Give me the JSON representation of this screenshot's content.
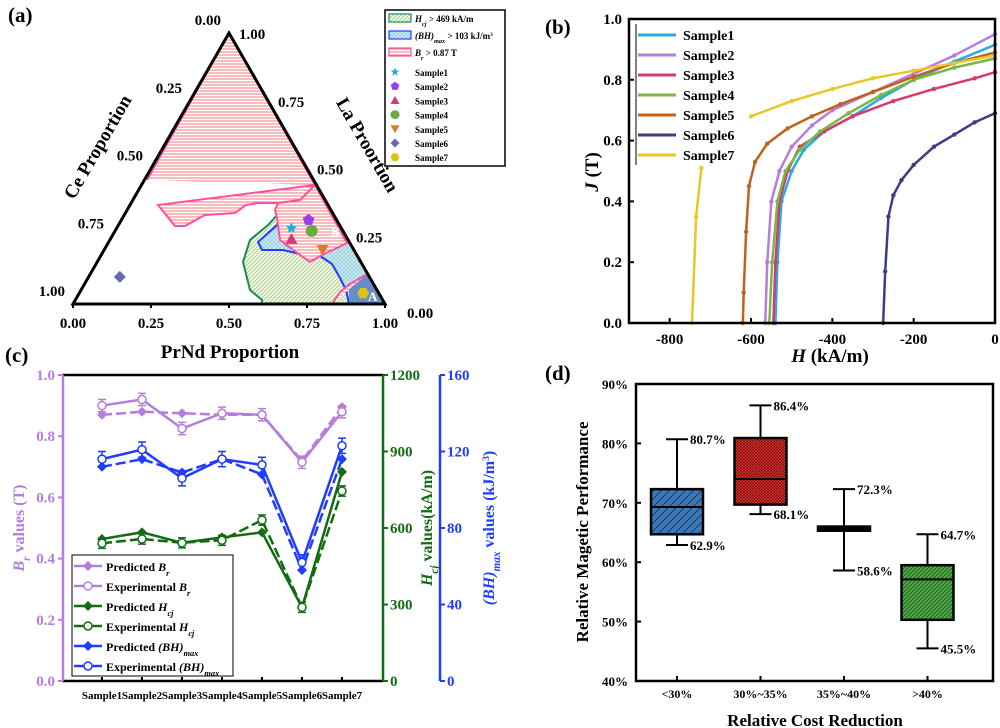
{
  "panel_labels": [
    "(a)",
    "(b)",
    "(c)",
    "(d)"
  ],
  "chart_data": [
    {
      "type": "scatter",
      "subtype": "ternary",
      "axes": {
        "bottom": {
          "title": "PrNd Proportion",
          "ticks": [
            "0.00",
            "0.25",
            "0.50",
            "0.75",
            "1.00"
          ]
        },
        "left": {
          "title": "Ce Proportion",
          "ticks": [
            "0.00",
            "0.25",
            "0.50",
            "0.75",
            "1.00"
          ]
        },
        "right": {
          "title": "La Proortion",
          "ticks": [
            "0.00",
            "0.25",
            "0.50",
            "0.75",
            "1.00"
          ]
        }
      },
      "regions": [
        {
          "symbol": "H",
          "subscript": "cj",
          "text": " > 469 kA/m",
          "color": "#1a8a5a"
        },
        {
          "symbol": "(BH)",
          "subscript": "max",
          "text": " > 103 kJ/m",
          "superscript": "3",
          "color": "#1f3cff"
        },
        {
          "symbol": "B",
          "subscript": "r",
          "text": " > 0.87 T",
          "color": "#ff4fa0"
        }
      ],
      "annotations": [
        "A",
        "B"
      ],
      "series": [
        {
          "name": "Sample1",
          "marker": "star",
          "color": "#29abe2",
          "PrNd": 0.56,
          "La": 0.28
        },
        {
          "name": "Sample2",
          "marker": "pentagon",
          "color": "#9b3df2",
          "PrNd": 0.6,
          "La": 0.31
        },
        {
          "name": "Sample3",
          "marker": "triangle-up",
          "color": "#d63a7a",
          "PrNd": 0.58,
          "La": 0.24
        },
        {
          "name": "Sample4",
          "marker": "circle",
          "color": "#6aab46",
          "PrNd": 0.63,
          "La": 0.27
        },
        {
          "name": "Sample5",
          "marker": "triangle-down",
          "color": "#e07a2a",
          "PrNd": 0.7,
          "La": 0.2
        },
        {
          "name": "Sample6",
          "marker": "diamond",
          "color": "#6a68b0",
          "PrNd": 0.1,
          "La": 0.1
        },
        {
          "name": "Sample7",
          "marker": "hexagon",
          "color": "#dcc213",
          "PrNd": 0.91,
          "La": 0.04
        }
      ],
      "legend": "top-right"
    },
    {
      "type": "line",
      "xlabel": {
        "symbol": "H",
        "text": " (kA/m)"
      },
      "ylabel": {
        "symbol": "J",
        "text": " (T)"
      },
      "xlim": [
        -900,
        0
      ],
      "ylim": [
        0,
        1.0
      ],
      "xticks": [
        "-800",
        "-600",
        "-400",
        "-200",
        "0"
      ],
      "xtick_values": [
        -800,
        -600,
        -400,
        -200,
        0
      ],
      "yticks": [
        "0.0",
        "0.2",
        "0.4",
        "0.6",
        "0.8",
        "1.0"
      ],
      "legend": "top-left",
      "series": [
        {
          "name": "Sample1",
          "color": "#29abe2",
          "x": [
            -540,
            -535,
            -525,
            -500,
            -470,
            -420,
            -350,
            -280,
            -200,
            -100,
            0
          ],
          "y": [
            0,
            0.2,
            0.4,
            0.5,
            0.57,
            0.63,
            0.68,
            0.74,
            0.8,
            0.86,
            0.915
          ]
        },
        {
          "name": "Sample2",
          "color": "#b57edc",
          "x": [
            -565,
            -560,
            -550,
            -530,
            -500,
            -450,
            -400,
            -300,
            -200,
            -100,
            0
          ],
          "y": [
            0,
            0.2,
            0.4,
            0.5,
            0.58,
            0.65,
            0.7,
            0.76,
            0.82,
            0.88,
            0.95
          ]
        },
        {
          "name": "Sample3",
          "color": "#d63a6e",
          "x": [
            -545,
            -540,
            -530,
            -510,
            -480,
            -420,
            -350,
            -250,
            -150,
            -50,
            0
          ],
          "y": [
            0,
            0.2,
            0.4,
            0.5,
            0.58,
            0.63,
            0.68,
            0.73,
            0.77,
            0.805,
            0.825
          ]
        },
        {
          "name": "Sample4",
          "color": "#7ab648",
          "x": [
            -555,
            -548,
            -535,
            -515,
            -480,
            -430,
            -360,
            -280,
            -200,
            -100,
            0
          ],
          "y": [
            0,
            0.2,
            0.4,
            0.5,
            0.57,
            0.63,
            0.69,
            0.75,
            0.8,
            0.84,
            0.87
          ]
        },
        {
          "name": "Sample5",
          "color": "#c2611a",
          "x": [
            -620,
            -618,
            -612,
            -605,
            -590,
            -560,
            -510,
            -450,
            -380,
            -300,
            -200,
            -100,
            0
          ],
          "y": [
            0,
            0.1,
            0.3,
            0.45,
            0.53,
            0.59,
            0.64,
            0.68,
            0.72,
            0.76,
            0.81,
            0.855,
            0.89
          ]
        },
        {
          "name": "Sample6",
          "color": "#3d3f86",
          "x": [
            -275,
            -270,
            -262,
            -250,
            -230,
            -200,
            -150,
            -100,
            -50,
            0
          ],
          "y": [
            0,
            0.17,
            0.35,
            0.42,
            0.47,
            0.52,
            0.58,
            0.62,
            0.66,
            0.69
          ]
        },
        {
          "name": "Sample7",
          "color": "#e6c829",
          "x": [
            -745,
            -735,
            -722,
            null,
            -600,
            -500,
            -400,
            -300,
            -200,
            -100,
            0
          ],
          "y": [
            0,
            0.35,
            0.51,
            null,
            0.68,
            0.73,
            0.77,
            0.805,
            0.83,
            0.855,
            0.88
          ]
        }
      ]
    },
    {
      "type": "line",
      "categories": [
        "Sample1",
        "Sample2",
        "Sample3",
        "Sample4",
        "Sample5",
        "Sample6",
        "Sample7"
      ],
      "axes": [
        {
          "id": "br",
          "color": "#b57edc",
          "lim": [
            0,
            1.0
          ],
          "ticks": [
            "0.0",
            "0.2",
            "0.4",
            "0.6",
            "0.8",
            "1.0"
          ],
          "label": {
            "symbol": "B",
            "subscript": "r",
            "text": " values (T)"
          }
        },
        {
          "id": "hcj",
          "color": "#136b13",
          "lim": [
            0,
            1200
          ],
          "ticks": [
            "0",
            "300",
            "600",
            "900",
            "1200"
          ],
          "label": {
            "symbol": "H",
            "subscript": "cj",
            "text": " values(kA/m)"
          }
        },
        {
          "id": "bh",
          "color": "#1f3cff",
          "lim": [
            0,
            160
          ],
          "ticks": [
            "0",
            "40",
            "80",
            "120",
            "160"
          ],
          "label": {
            "symbol": "(BH)",
            "subscript": "max",
            "text": " values (kJ/m",
            "superscript": "3",
            "tail": ")"
          }
        }
      ],
      "legend": "bottom-left",
      "series": [
        {
          "prefix": "Predicted ",
          "symbol": "B",
          "subscript": "r",
          "axis": 0,
          "marker": "diamond",
          "dashed": true,
          "values": [
            0.87,
            0.88,
            0.875,
            0.87,
            0.87,
            0.72,
            0.895
          ]
        },
        {
          "prefix": "Experimental ",
          "symbol": "B",
          "subscript": "r",
          "axis": 0,
          "marker": "open-circle",
          "dashed": false,
          "values": [
            0.9,
            0.92,
            0.825,
            0.875,
            0.87,
            0.715,
            0.88
          ],
          "error": 0.02
        },
        {
          "prefix": "Predicted ",
          "symbol": "H",
          "subscript": "cj",
          "axis": 1,
          "marker": "diamond",
          "dashed": false,
          "values": [
            557,
            583,
            542,
            563,
            583,
            289,
            820
          ]
        },
        {
          "prefix": "Experimental ",
          "symbol": "H",
          "subscript": "cj",
          "axis": 1,
          "marker": "open-circle",
          "dashed": true,
          "values": [
            540,
            557,
            542,
            552,
            631,
            289,
            745
          ],
          "error": 20
        },
        {
          "prefix": "Predicted ",
          "symbol": "(BH)",
          "subscript": "max",
          "axis": 2,
          "marker": "diamond",
          "dashed": true,
          "values": [
            112,
            116,
            109,
            116,
            108,
            58,
            116
          ]
        },
        {
          "prefix": "Experimental ",
          "symbol": "(BH)",
          "subscript": "max",
          "axis": 2,
          "marker": "open-circle",
          "dashed": false,
          "values": [
            116,
            121,
            106,
            116,
            113,
            62,
            123
          ],
          "error": 4
        }
      ]
    },
    {
      "type": "box",
      "xlabel": "Relative Cost Reduction",
      "ylabel": "Relative Magetic Performance",
      "ylim": [
        40,
        90
      ],
      "yticks": [
        "40%",
        "50%",
        "60%",
        "70%",
        "80%",
        "90%"
      ],
      "categories": [
        "<30%",
        "30%~35%",
        "35%~40%",
        ">40%"
      ],
      "boxes": [
        {
          "min": 62.9,
          "q1": 64.7,
          "median": 69.3,
          "q3": 72.3,
          "max": 80.7,
          "color": "#3a78b8",
          "max_label": "80.7%",
          "min_label": "62.9%"
        },
        {
          "min": 68.1,
          "q1": 69.7,
          "median": 74.0,
          "q3": 80.9,
          "max": 86.4,
          "color": "#d42a2a",
          "max_label": "86.4%",
          "min_label": "68.1%"
        },
        {
          "min": 58.6,
          "q1": 65.3,
          "median": 65.6,
          "q3": 66.0,
          "max": 72.3,
          "color": "#000000",
          "max_label": "72.3%",
          "min_label": "58.6%"
        },
        {
          "min": 45.5,
          "q1": 50.3,
          "median": 57.1,
          "q3": 59.5,
          "max": 64.7,
          "color": "#4ea744",
          "max_label": "64.7%",
          "min_label": "45.5%"
        }
      ]
    }
  ]
}
